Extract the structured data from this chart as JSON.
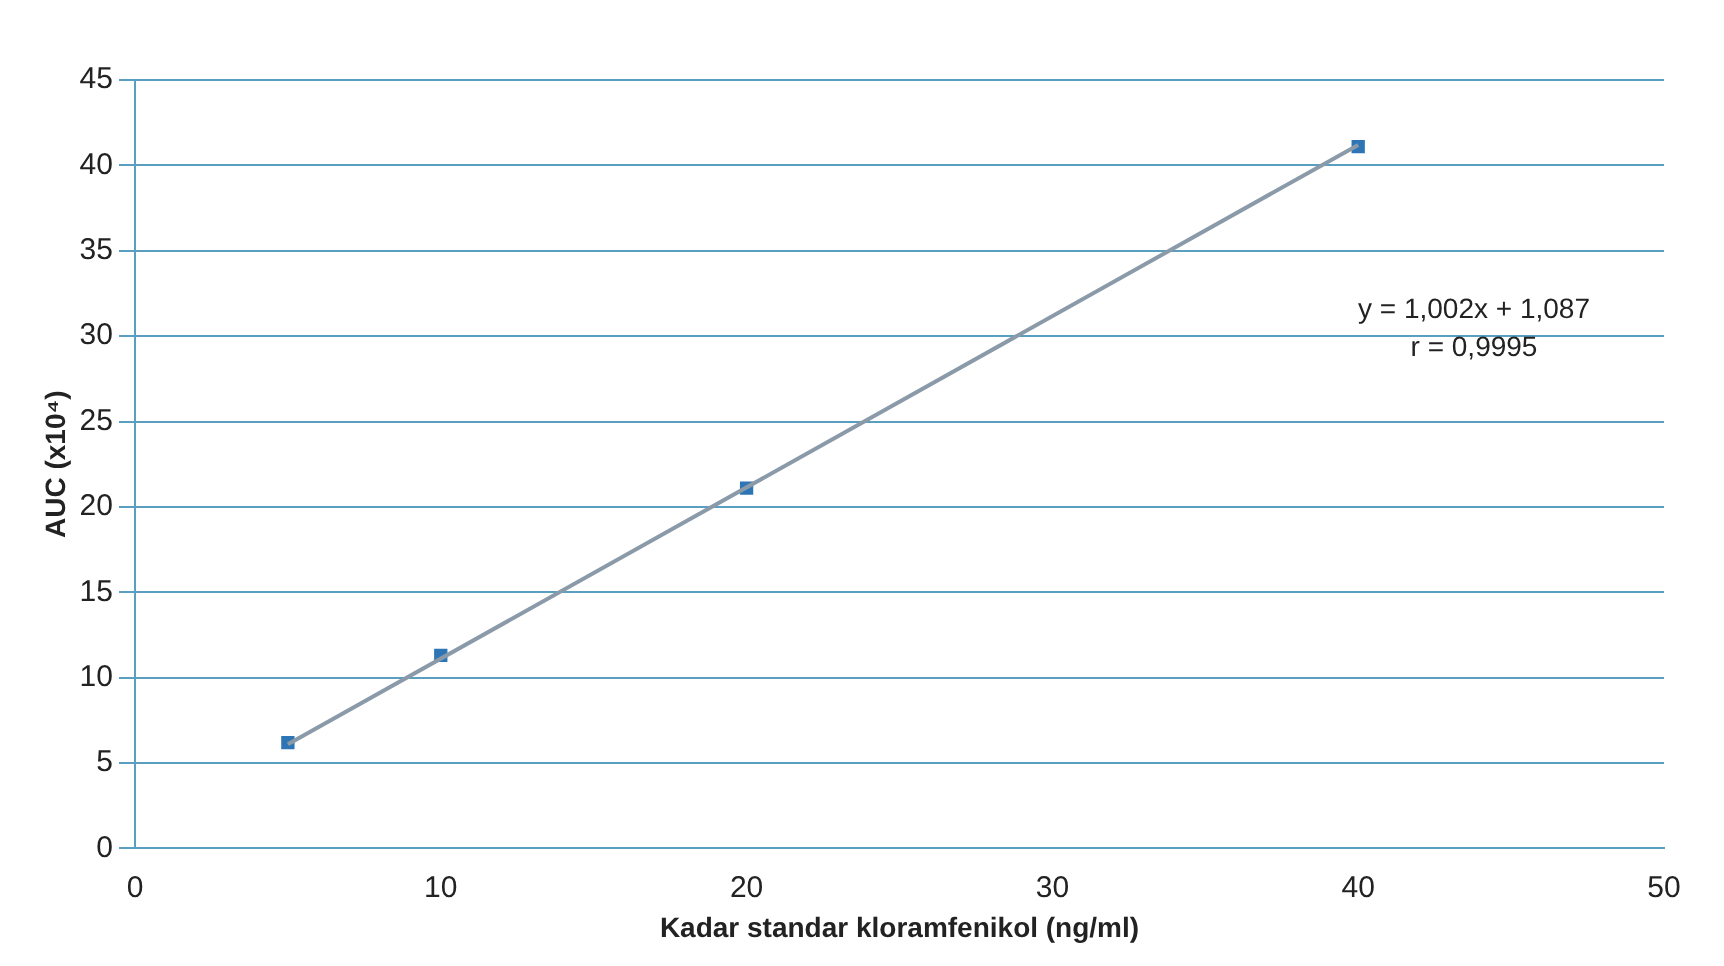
{
  "chart_data": {
    "type": "scatter",
    "xlabel": "Kadar standar kloramfenikol (ng/ml)",
    "ylabel": "AUC (x10⁴)",
    "xlim": [
      0,
      50
    ],
    "xticks": [
      0,
      10,
      20,
      30,
      40,
      50
    ],
    "ylim": [
      0,
      45
    ],
    "yticks": [
      0,
      5,
      10,
      15,
      20,
      25,
      30,
      35,
      40,
      45
    ],
    "grid": "y",
    "legend": false,
    "marker": "square",
    "series": [
      {
        "type": "line",
        "color": "#8a9aa8",
        "x": [
          5,
          40
        ],
        "values": [
          6.1,
          41.2
        ],
        "marker": "none"
      },
      {
        "color": "#2e75b6",
        "x": [
          5,
          10,
          20,
          40
        ],
        "values": [
          6.2,
          11.3,
          21.1,
          41.1
        ]
      }
    ],
    "annotations": [
      "y = 1,002x + 1,087",
      "r = 0,9995"
    ]
  }
}
